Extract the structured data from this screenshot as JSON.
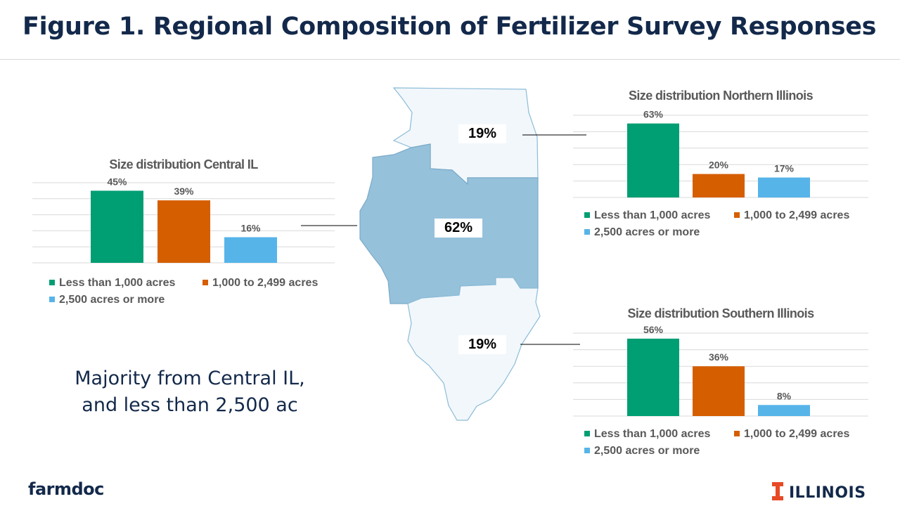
{
  "title": "Figure 1. Regional Composition of Fertilizer Survey Responses",
  "takeaway": [
    "Majority from Central IL,",
    "and less than 2,500 ac"
  ],
  "branding": {
    "left": "farmdoc",
    "right": "ILLINOIS"
  },
  "colors": {
    "title": "#13294b",
    "less_than_1000": "#009e73",
    "mid": "#d55e00",
    "large": "#56b4e9",
    "central_region": "#96c1db",
    "other_regions": "#f2f7fb",
    "illinois_orange": "#e84a27"
  },
  "map": {
    "north_share": "19%",
    "central_share": "62%",
    "south_share": "19%"
  },
  "chart_data": [
    {
      "id": "central",
      "type": "bar",
      "title": "Size distribution Central IL",
      "categories": [
        "Less than 1,000 acres",
        "1,000 to 2,499 acres",
        "2,500 acres or more"
      ],
      "values": [
        45,
        39,
        16
      ],
      "labels": [
        "45%",
        "39%",
        "16%"
      ],
      "ylim": [
        0,
        50
      ],
      "grid": true,
      "legend": "bottom"
    },
    {
      "id": "north",
      "type": "bar",
      "title": "Size distribution Northern Illinois",
      "categories": [
        "Less than 1,000 acres",
        "1,000 to 2,499 acres",
        "2,500 acres or more"
      ],
      "values": [
        63,
        20,
        17
      ],
      "labels": [
        "63%",
        "20%",
        "17%"
      ],
      "ylim": [
        0,
        70
      ],
      "grid": true,
      "legend": "bottom"
    },
    {
      "id": "south",
      "type": "bar",
      "title": "Size distribution Southern Illinois",
      "categories": [
        "Less than 1,000 acres",
        "1,000 to 2,499 acres",
        "2,500 acres or more"
      ],
      "values": [
        56,
        36,
        8
      ],
      "labels": [
        "56%",
        "36%",
        "8%"
      ],
      "ylim": [
        0,
        60
      ],
      "grid": true,
      "legend": "bottom"
    }
  ]
}
